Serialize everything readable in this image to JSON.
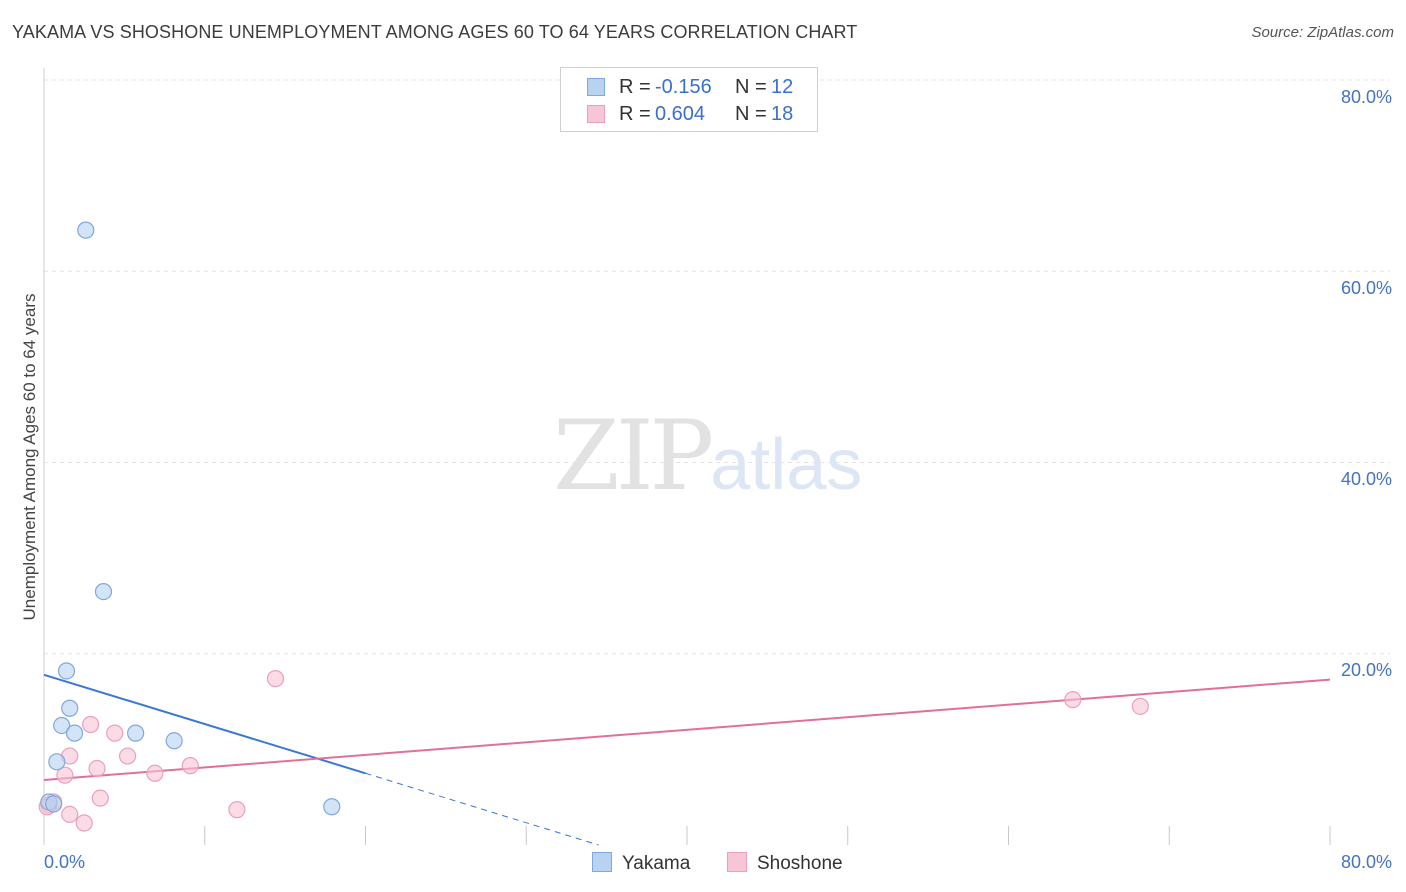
{
  "title": "YAKAMA VS SHOSHONE UNEMPLOYMENT AMONG AGES 60 TO 64 YEARS CORRELATION CHART",
  "source": "Source: ZipAtlas.com",
  "watermark": {
    "zip": "ZIP",
    "atlas": "atlas"
  },
  "legend": {
    "rows": [
      {
        "r_label": "R =",
        "r_value": "-0.156",
        "n_label": "N =",
        "n_value": "12"
      },
      {
        "r_label": "R =",
        "r_value": "0.604",
        "n_label": "N =",
        "n_value": "18"
      }
    ]
  },
  "bottom_legend": [
    "Yakama",
    "Shoshone"
  ],
  "colors": {
    "yakama_fill": "#b8d2f2",
    "yakama_stroke": "#7fa8de",
    "yakama_line": "#3a78d4",
    "shoshone_fill": "#f8c5d6",
    "shoshone_stroke": "#eda0ba",
    "shoshone_line": "#e07098",
    "tick_text": "#4472c4",
    "grid": "#e4e4e4"
  },
  "chart_data": {
    "type": "scatter",
    "title": "YAKAMA VS SHOSHONE UNEMPLOYMENT AMONG AGES 60 TO 64 YEARS CORRELATION CHART",
    "xlabel": "",
    "ylabel": "Unemployment Among Ages 60 to 64 years",
    "xlim": [
      0,
      80
    ],
    "ylim": [
      0,
      80
    ],
    "x_tick_labels": [
      "0.0%",
      "80.0%"
    ],
    "y_ticks": [
      20,
      40,
      60,
      80
    ],
    "y_tick_labels": [
      "20.0%",
      "40.0%",
      "60.0%",
      "80.0%"
    ],
    "grid": true,
    "series": [
      {
        "name": "Yakama",
        "r": -0.156,
        "n": 12,
        "points": [
          [
            2.6,
            64.3
          ],
          [
            3.7,
            26.5
          ],
          [
            1.4,
            18.2
          ],
          [
            1.6,
            14.3
          ],
          [
            1.1,
            12.5
          ],
          [
            1.9,
            11.7
          ],
          [
            5.7,
            11.7
          ],
          [
            8.1,
            10.9
          ],
          [
            0.8,
            8.7
          ],
          [
            0.3,
            4.5
          ],
          [
            0.6,
            4.3
          ],
          [
            17.9,
            4.0
          ]
        ],
        "trend": {
          "x0": 0,
          "y0": 17.8,
          "x1": 20.0,
          "y1": 7.5,
          "dash_to_x": 34.5,
          "dash_to_y": 0
        }
      },
      {
        "name": "Shoshone",
        "r": 0.604,
        "n": 18,
        "points": [
          [
            14.4,
            17.4
          ],
          [
            64.0,
            15.2
          ],
          [
            68.2,
            14.5
          ],
          [
            2.9,
            12.6
          ],
          [
            4.4,
            11.7
          ],
          [
            1.6,
            9.3
          ],
          [
            5.2,
            9.3
          ],
          [
            9.1,
            8.3
          ],
          [
            3.3,
            8.0
          ],
          [
            6.9,
            7.5
          ],
          [
            1.3,
            7.3
          ],
          [
            3.5,
            4.9
          ],
          [
            0.6,
            4.5
          ],
          [
            0.3,
            4.2
          ],
          [
            0.2,
            4.0
          ],
          [
            12.0,
            3.7
          ],
          [
            1.6,
            3.2
          ],
          [
            2.5,
            2.3
          ]
        ],
        "trend": {
          "x0": 0,
          "y0": 6.8,
          "x1": 80,
          "y1": 17.3
        }
      }
    ]
  }
}
